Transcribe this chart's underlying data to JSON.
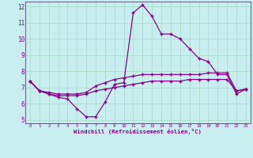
{
  "xlabel": "Windchill (Refroidissement éolien,°C)",
  "background_color": "#c8eef0",
  "grid_color": "#aaddcc",
  "line_color": "#880088",
  "spine_color": "#666688",
  "x_hours": [
    0,
    1,
    2,
    3,
    4,
    5,
    6,
    7,
    8,
    9,
    10,
    11,
    12,
    13,
    14,
    15,
    16,
    17,
    18,
    19,
    20,
    21,
    22,
    23
  ],
  "line1": [
    7.4,
    6.8,
    6.6,
    6.4,
    6.3,
    5.7,
    5.2,
    5.2,
    6.1,
    7.2,
    7.3,
    11.6,
    12.1,
    11.4,
    10.3,
    10.3,
    10.0,
    9.4,
    8.8,
    8.6,
    7.8,
    7.8,
    6.6,
    6.9
  ],
  "line2": [
    7.4,
    6.8,
    6.7,
    6.6,
    6.6,
    6.6,
    6.7,
    7.1,
    7.3,
    7.5,
    7.6,
    7.7,
    7.8,
    7.8,
    7.8,
    7.8,
    7.8,
    7.8,
    7.8,
    7.9,
    7.9,
    7.9,
    6.8,
    6.9
  ],
  "line3": [
    7.4,
    6.8,
    6.6,
    6.5,
    6.5,
    6.5,
    6.6,
    6.8,
    6.9,
    7.0,
    7.1,
    7.2,
    7.3,
    7.4,
    7.4,
    7.4,
    7.4,
    7.5,
    7.5,
    7.5,
    7.5,
    7.5,
    6.8,
    6.9
  ],
  "ylim": [
    5,
    12
  ],
  "xlim": [
    0,
    23
  ],
  "yticks": [
    5,
    6,
    7,
    8,
    9,
    10,
    11,
    12
  ],
  "xticks": [
    0,
    1,
    2,
    3,
    4,
    5,
    6,
    7,
    8,
    9,
    10,
    11,
    12,
    13,
    14,
    15,
    16,
    17,
    18,
    19,
    20,
    21,
    22,
    23
  ]
}
